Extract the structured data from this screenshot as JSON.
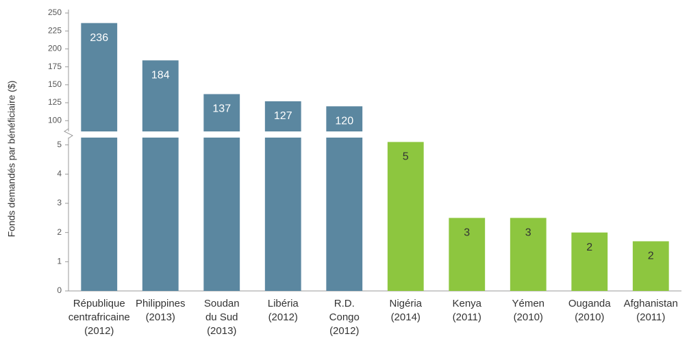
{
  "chart_data": {
    "type": "bar",
    "ylabel": "Fonds demandés par bénéficiaire ($)",
    "categories": [
      [
        "République",
        "centrafricaine",
        "(2012)"
      ],
      [
        "Philippines",
        "(2013)"
      ],
      [
        "Soudan",
        "du Sud",
        "(2013)"
      ],
      [
        "Libéria",
        "(2012)"
      ],
      [
        "R.D.",
        "Congo",
        "(2012)"
      ],
      [
        "Nigéria",
        "(2014)"
      ],
      [
        "Kenya",
        "(2011)"
      ],
      [
        "Yémen",
        "(2010)"
      ],
      [
        "Ouganda",
        "(2010)"
      ],
      [
        "Afghanistan",
        "(2011)"
      ]
    ],
    "values": [
      236,
      184,
      137,
      127,
      120,
      5.1,
      2.5,
      2.5,
      2.0,
      1.7
    ],
    "value_labels": [
      "236",
      "184",
      "137",
      "127",
      "120",
      "5",
      "3",
      "3",
      "2",
      "2"
    ],
    "colors": [
      "#5b87a0",
      "#5b87a0",
      "#5b87a0",
      "#5b87a0",
      "#5b87a0",
      "#8dc63f",
      "#8dc63f",
      "#8dc63f",
      "#8dc63f",
      "#8dc63f"
    ],
    "axis_segments": [
      {
        "ylim": [
          0,
          5.25
        ],
        "yticks": [
          0,
          1,
          2,
          3,
          4,
          5
        ]
      },
      {
        "ylim": [
          85,
          250
        ],
        "yticks": [
          100,
          125,
          150,
          175,
          200,
          225,
          250
        ]
      }
    ]
  }
}
